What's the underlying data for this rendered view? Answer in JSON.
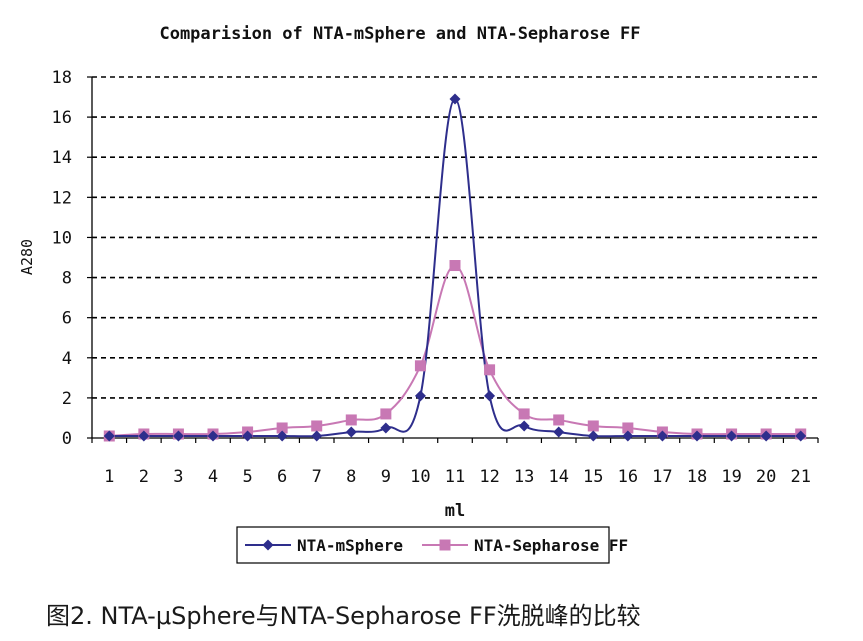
{
  "chart_data": {
    "type": "line",
    "title": "Comparision of NTA-mSphere and NTA-Sepharose FF",
    "xlabel": "ml",
    "ylabel": "A280",
    "categories": [
      "1",
      "2",
      "3",
      "4",
      "5",
      "6",
      "7",
      "8",
      "9",
      "10",
      "11",
      "12",
      "13",
      "14",
      "15",
      "16",
      "17",
      "18",
      "19",
      "20",
      "21"
    ],
    "ylim": [
      0,
      18
    ],
    "yticks": [
      0,
      2,
      4,
      6,
      8,
      10,
      12,
      14,
      16,
      18
    ],
    "grid": "horizontal dashed",
    "legend_position": "bottom",
    "series": [
      {
        "name": "NTA-mSphere",
        "color": "#2e2e8c",
        "marker": "diamond",
        "values": [
          0.1,
          0.1,
          0.1,
          0.1,
          0.1,
          0.1,
          0.1,
          0.3,
          0.5,
          2.1,
          16.9,
          2.1,
          0.6,
          0.3,
          0.1,
          0.1,
          0.1,
          0.1,
          0.1,
          0.1,
          0.1
        ]
      },
      {
        "name": "NTA-Sepharose FF",
        "color": "#c878b4",
        "marker": "square",
        "values": [
          0.1,
          0.2,
          0.2,
          0.2,
          0.3,
          0.5,
          0.6,
          0.9,
          1.2,
          3.6,
          8.6,
          3.4,
          1.2,
          0.9,
          0.6,
          0.5,
          0.3,
          0.2,
          0.2,
          0.2,
          0.2
        ]
      }
    ]
  },
  "caption": "图2. NTA-μSphere与NTA-Sepharose FF洗脱峰的比较"
}
